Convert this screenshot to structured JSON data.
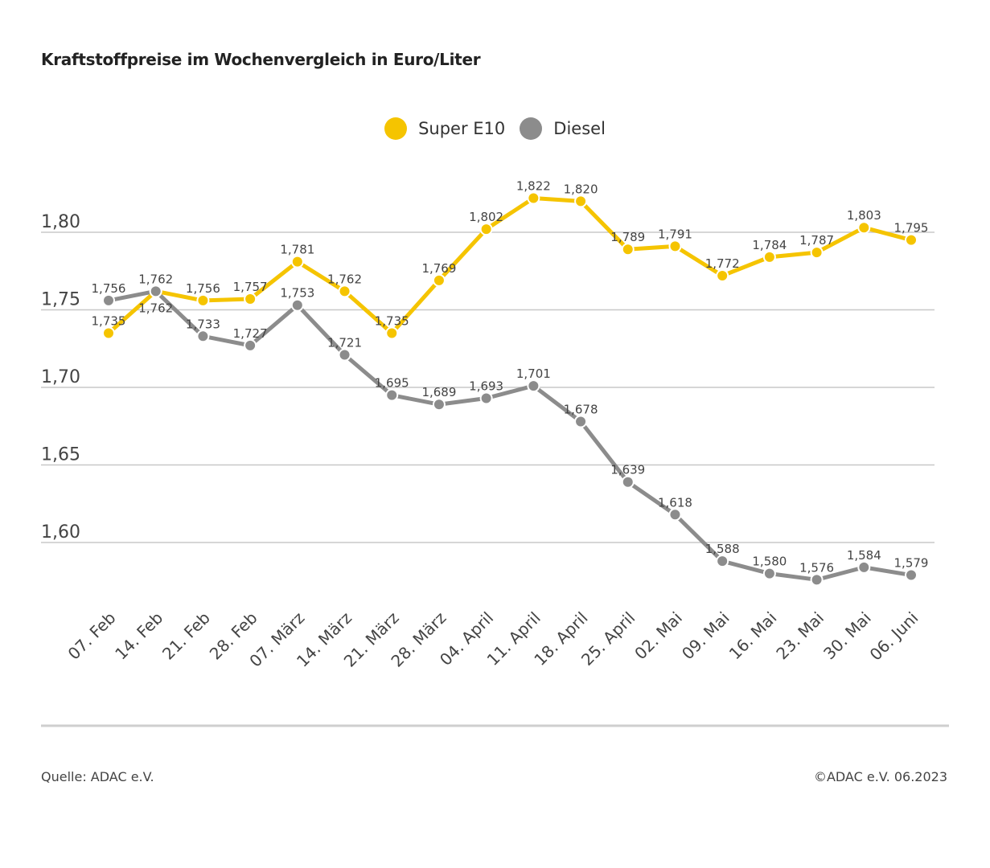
{
  "chart_data": {
    "type": "line",
    "title": "Kraftstoffpreise im Wochenvergleich in Euro/Liter",
    "xlabel": "",
    "ylabel": "",
    "ylim": [
      1.55,
      1.85
    ],
    "grid": true,
    "legend_position": "top-center",
    "y_ticks": [
      {
        "value": 1.8,
        "label": "1,80"
      },
      {
        "value": 1.75,
        "label": "1,75"
      },
      {
        "value": 1.7,
        "label": "1,70"
      },
      {
        "value": 1.65,
        "label": "1,65"
      },
      {
        "value": 1.6,
        "label": "1,60"
      }
    ],
    "categories": [
      "07. Feb",
      "14. Feb",
      "21. Feb",
      "28. Feb",
      "07. März",
      "14. März",
      "21. März",
      "28. März",
      "04. April",
      "11. April",
      "18. April",
      "25. April",
      "02. Mai",
      "09. Mai",
      "16. Mai",
      "23. Mai",
      "30. Mai",
      "06. Juni"
    ],
    "series": [
      {
        "name": "Super E10",
        "color": "#f5c400",
        "values": [
          1.735,
          1.762,
          1.756,
          1.757,
          1.781,
          1.762,
          1.735,
          1.769,
          1.802,
          1.822,
          1.82,
          1.789,
          1.791,
          1.772,
          1.784,
          1.787,
          1.803,
          1.795
        ],
        "labels": [
          "1,735",
          "1,762",
          "1,756",
          "1,757",
          "1,781",
          "1,762",
          "1,735",
          "1,769",
          "1,802",
          "1,822",
          "1,820",
          "1,789",
          "1,791",
          "1,772",
          "1,784",
          "1,787",
          "1,803",
          "1,795"
        ]
      },
      {
        "name": "Diesel",
        "color": "#8c8c8c",
        "values": [
          1.756,
          1.762,
          1.733,
          1.727,
          1.753,
          1.721,
          1.695,
          1.689,
          1.693,
          1.701,
          1.678,
          1.639,
          1.618,
          1.588,
          1.58,
          1.576,
          1.584,
          1.579
        ],
        "labels": [
          "1,756",
          "1,762",
          "1,733",
          "1,727",
          "1,753",
          "1,721",
          "1,695",
          "1,689",
          "1,693",
          "1,701",
          "1,678",
          "1,639",
          "1,618",
          "1,588",
          "1,580",
          "1,576",
          "1,584",
          "1,579"
        ]
      }
    ]
  },
  "footer": {
    "source": "Quelle: ADAC e.V.",
    "copyright": "©ADAC e.V. 06.2023"
  }
}
